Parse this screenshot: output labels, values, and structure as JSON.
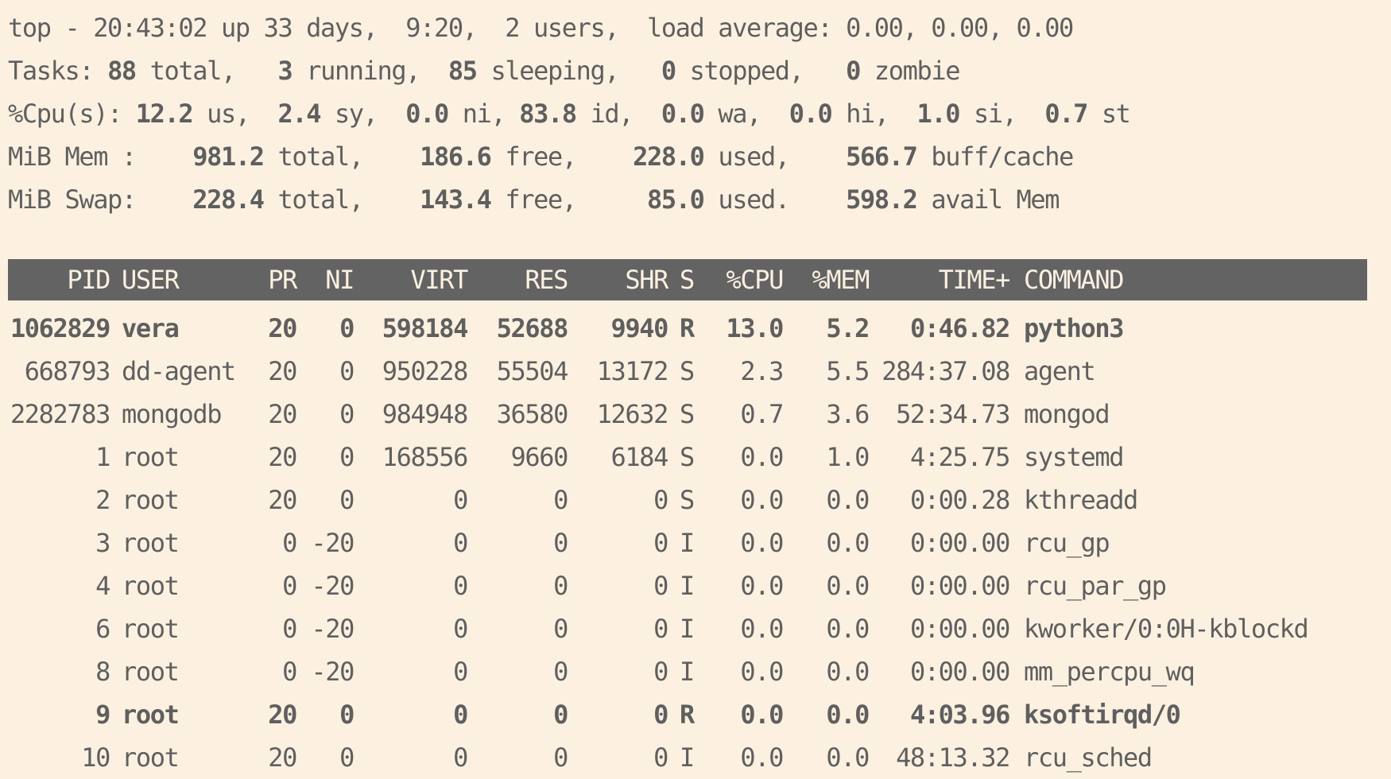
{
  "summary": [
    [
      [
        "top - 20:43:02 up 33 days,  9:20,  2 users,  load average: 0.00, 0.00, 0.00",
        false
      ]
    ],
    [
      [
        "Tasks: ",
        false
      ],
      [
        "88",
        true
      ],
      [
        " total,   ",
        false
      ],
      [
        "3",
        true
      ],
      [
        " running,  ",
        false
      ],
      [
        "85",
        true
      ],
      [
        " sleeping,   ",
        false
      ],
      [
        "0",
        true
      ],
      [
        " stopped,   ",
        false
      ],
      [
        "0",
        true
      ],
      [
        " zombie",
        false
      ]
    ],
    [
      [
        "%Cpu(s): ",
        false
      ],
      [
        "12.2",
        true
      ],
      [
        " us,  ",
        false
      ],
      [
        "2.4",
        true
      ],
      [
        " sy,  ",
        false
      ],
      [
        "0.0",
        true
      ],
      [
        " ni, ",
        false
      ],
      [
        "83.8",
        true
      ],
      [
        " id,  ",
        false
      ],
      [
        "0.0",
        true
      ],
      [
        " wa,  ",
        false
      ],
      [
        "0.0",
        true
      ],
      [
        " hi,  ",
        false
      ],
      [
        "1.0",
        true
      ],
      [
        " si,  ",
        false
      ],
      [
        "0.7",
        true
      ],
      [
        " st",
        false
      ]
    ],
    [
      [
        "MiB Mem :    ",
        false
      ],
      [
        "981.2",
        true
      ],
      [
        " total,    ",
        false
      ],
      [
        "186.6",
        true
      ],
      [
        " free,    ",
        false
      ],
      [
        "228.0",
        true
      ],
      [
        " used,    ",
        false
      ],
      [
        "566.7",
        true
      ],
      [
        " buff/cache",
        false
      ]
    ],
    [
      [
        "MiB Swap:    ",
        false
      ],
      [
        "228.4",
        true
      ],
      [
        " total,    ",
        false
      ],
      [
        "143.4",
        true
      ],
      [
        " free,     ",
        false
      ],
      [
        "85.0",
        true
      ],
      [
        " used.    ",
        false
      ],
      [
        "598.2",
        true
      ],
      [
        " avail Mem",
        false
      ]
    ]
  ],
  "table": {
    "headers": [
      "PID",
      "USER",
      "PR",
      "NI",
      "VIRT",
      "RES",
      "SHR",
      "S",
      "%CPU",
      "%MEM",
      "TIME+",
      "COMMAND"
    ],
    "rows": [
      {
        "bold": true,
        "cells": [
          "1062829",
          "vera",
          "20",
          "0",
          "598184",
          "52688",
          "9940",
          "R",
          "13.0",
          "5.2",
          "0:46.82",
          "python3"
        ]
      },
      {
        "bold": false,
        "cells": [
          "668793",
          "dd-agent",
          "20",
          "0",
          "950228",
          "55504",
          "13172",
          "S",
          "2.3",
          "5.5",
          "284:37.08",
          "agent"
        ]
      },
      {
        "bold": false,
        "cells": [
          "2282783",
          "mongodb",
          "20",
          "0",
          "984948",
          "36580",
          "12632",
          "S",
          "0.7",
          "3.6",
          "52:34.73",
          "mongod"
        ]
      },
      {
        "bold": false,
        "cells": [
          "1",
          "root",
          "20",
          "0",
          "168556",
          "9660",
          "6184",
          "S",
          "0.0",
          "1.0",
          "4:25.75",
          "systemd"
        ]
      },
      {
        "bold": false,
        "cells": [
          "2",
          "root",
          "20",
          "0",
          "0",
          "0",
          "0",
          "S",
          "0.0",
          "0.0",
          "0:00.28",
          "kthreadd"
        ]
      },
      {
        "bold": false,
        "cells": [
          "3",
          "root",
          "0",
          "-20",
          "0",
          "0",
          "0",
          "I",
          "0.0",
          "0.0",
          "0:00.00",
          "rcu_gp"
        ]
      },
      {
        "bold": false,
        "cells": [
          "4",
          "root",
          "0",
          "-20",
          "0",
          "0",
          "0",
          "I",
          "0.0",
          "0.0",
          "0:00.00",
          "rcu_par_gp"
        ]
      },
      {
        "bold": false,
        "cells": [
          "6",
          "root",
          "0",
          "-20",
          "0",
          "0",
          "0",
          "I",
          "0.0",
          "0.0",
          "0:00.00",
          "kworker/0:0H-kblockd"
        ]
      },
      {
        "bold": false,
        "cells": [
          "8",
          "root",
          "0",
          "-20",
          "0",
          "0",
          "0",
          "I",
          "0.0",
          "0.0",
          "0:00.00",
          "mm_percpu_wq"
        ]
      },
      {
        "bold": true,
        "cells": [
          "9",
          "root",
          "20",
          "0",
          "0",
          "0",
          "0",
          "R",
          "0.0",
          "0.0",
          "4:03.96",
          "ksoftirqd/0"
        ]
      },
      {
        "bold": false,
        "cells": [
          "10",
          "root",
          "20",
          "0",
          "0",
          "0",
          "0",
          "I",
          "0.0",
          "0.0",
          "48:13.32",
          "rcu_sched"
        ]
      }
    ]
  },
  "colors": {
    "background": "#fcf1e1",
    "text": "#5f5f5f",
    "header_bar": "#636363",
    "header_text": "#fcf1e1"
  }
}
